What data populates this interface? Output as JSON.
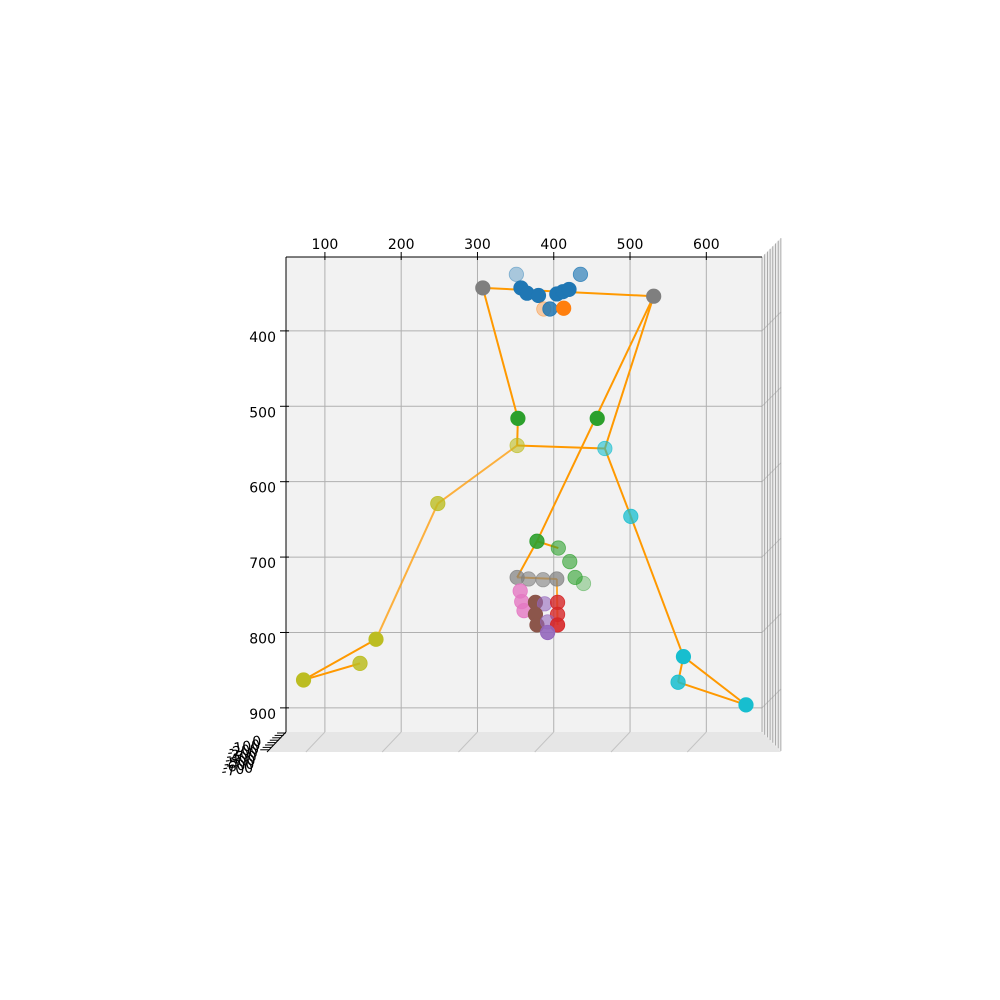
{
  "chart_data": {
    "type": "scatter",
    "projection": "3d",
    "view": "top-down",
    "title": "",
    "xlabel": "",
    "ylabel": "",
    "zlabel": "",
    "xlim": [
      49,
      673
    ],
    "ylim": [
      932,
      302
    ],
    "x_ticks": [
      100,
      200,
      300,
      400,
      500,
      600
    ],
    "y_ticks": [
      400,
      500,
      600,
      700,
      800,
      900
    ],
    "z_ticks": [
      "-700",
      "-600",
      "-500",
      "-400",
      "-300",
      "-200",
      "-100",
      "0"
    ],
    "grid": true,
    "line_color": "#ff9900",
    "points": [
      {
        "x": 351,
        "y": 325,
        "c": "#1f77b4",
        "a": 0.35
      },
      {
        "x": 435,
        "y": 325,
        "c": "#1f77b4",
        "a": 0.65
      },
      {
        "x": 307,
        "y": 343,
        "c": "#7f7f7f",
        "a": 1
      },
      {
        "x": 357,
        "y": 343,
        "c": "#1f77b4",
        "a": 1
      },
      {
        "x": 365,
        "y": 350,
        "c": "#1f77b4",
        "a": 1
      },
      {
        "x": 380,
        "y": 353,
        "c": "#1f77b4",
        "a": 1
      },
      {
        "x": 404,
        "y": 351,
        "c": "#1f77b4",
        "a": 1
      },
      {
        "x": 412,
        "y": 348,
        "c": "#1f77b4",
        "a": 1
      },
      {
        "x": 420,
        "y": 345,
        "c": "#1f77b4",
        "a": 1
      },
      {
        "x": 531,
        "y": 354,
        "c": "#7f7f7f",
        "a": 1
      },
      {
        "x": 387,
        "y": 371,
        "c": "#ff7f0e",
        "a": 0.35
      },
      {
        "x": 395,
        "y": 371,
        "c": "#1f77b4",
        "a": 0.85
      },
      {
        "x": 413,
        "y": 370,
        "c": "#ff7f0e",
        "a": 1
      },
      {
        "x": 353,
        "y": 516,
        "c": "#2ca02c",
        "a": 1
      },
      {
        "x": 457,
        "y": 516,
        "c": "#2ca02c",
        "a": 1
      },
      {
        "x": 352,
        "y": 552,
        "c": "#bcbd22",
        "a": 0.6
      },
      {
        "x": 467,
        "y": 556,
        "c": "#17becf",
        "a": 0.6
      },
      {
        "x": 248,
        "y": 629,
        "c": "#bcbd22",
        "a": 0.8
      },
      {
        "x": 501,
        "y": 646,
        "c": "#17becf",
        "a": 0.75
      },
      {
        "x": 378,
        "y": 679,
        "c": "#2ca02c",
        "a": 0.9
      },
      {
        "x": 406,
        "y": 688,
        "c": "#2ca02c",
        "a": 0.6
      },
      {
        "x": 421,
        "y": 706,
        "c": "#2ca02c",
        "a": 0.6
      },
      {
        "x": 428,
        "y": 727,
        "c": "#2ca02c",
        "a": 0.6
      },
      {
        "x": 439,
        "y": 735,
        "c": "#2ca02c",
        "a": 0.35
      },
      {
        "x": 352,
        "y": 727,
        "c": "#7f7f7f",
        "a": 0.7
      },
      {
        "x": 367,
        "y": 729,
        "c": "#7f7f7f",
        "a": 0.6
      },
      {
        "x": 386,
        "y": 730,
        "c": "#7f7f7f",
        "a": 0.6
      },
      {
        "x": 404,
        "y": 729,
        "c": "#7f7f7f",
        "a": 0.7
      },
      {
        "x": 356,
        "y": 745,
        "c": "#e377c2",
        "a": 0.8
      },
      {
        "x": 358,
        "y": 759,
        "c": "#e377c2",
        "a": 0.8
      },
      {
        "x": 361,
        "y": 771,
        "c": "#e377c2",
        "a": 0.8
      },
      {
        "x": 376,
        "y": 760,
        "c": "#8c564b",
        "a": 1
      },
      {
        "x": 388,
        "y": 762,
        "c": "#9467bd",
        "a": 0.6
      },
      {
        "x": 405,
        "y": 760,
        "c": "#d62728",
        "a": 0.8
      },
      {
        "x": 376,
        "y": 776,
        "c": "#8c564b",
        "a": 1
      },
      {
        "x": 405,
        "y": 776,
        "c": "#d62728",
        "a": 0.8
      },
      {
        "x": 378,
        "y": 790,
        "c": "#8c564b",
        "a": 1
      },
      {
        "x": 392,
        "y": 786,
        "c": "#9467bd",
        "a": 0.6
      },
      {
        "x": 405,
        "y": 790,
        "c": "#d62728",
        "a": 0.9
      },
      {
        "x": 392,
        "y": 800,
        "c": "#9467bd",
        "a": 0.9
      },
      {
        "x": 167,
        "y": 809,
        "c": "#bcbd22",
        "a": 1
      },
      {
        "x": 146,
        "y": 841,
        "c": "#bcbd22",
        "a": 0.85
      },
      {
        "x": 570,
        "y": 832,
        "c": "#17becf",
        "a": 1
      },
      {
        "x": 563,
        "y": 866,
        "c": "#17becf",
        "a": 0.85
      },
      {
        "x": 72,
        "y": 863,
        "c": "#bcbd22",
        "a": 1
      },
      {
        "x": 652,
        "y": 896,
        "c": "#17becf",
        "a": 1
      }
    ],
    "lines": [
      {
        "from": [
          307,
          343
        ],
        "to": [
          531,
          354
        ],
        "a": 1
      },
      {
        "from": [
          307,
          343
        ],
        "to": [
          353,
          516
        ],
        "a": 1
      },
      {
        "from": [
          353,
          516
        ],
        "to": [
          352,
          552
        ],
        "a": 1
      },
      {
        "from": [
          352,
          552
        ],
        "to": [
          467,
          556
        ],
        "a": 1
      },
      {
        "from": [
          531,
          354
        ],
        "to": [
          467,
          556
        ],
        "a": 1
      },
      {
        "from": [
          531,
          354
        ],
        "to": [
          378,
          679
        ],
        "a": 1
      },
      {
        "from": [
          467,
          556
        ],
        "to": [
          501,
          646
        ],
        "a": 1
      },
      {
        "from": [
          501,
          646
        ],
        "to": [
          570,
          832
        ],
        "a": 1
      },
      {
        "from": [
          570,
          832
        ],
        "to": [
          563,
          866
        ],
        "a": 1
      },
      {
        "from": [
          570,
          832
        ],
        "to": [
          652,
          896
        ],
        "a": 1
      },
      {
        "from": [
          563,
          866
        ],
        "to": [
          652,
          896
        ],
        "a": 1
      },
      {
        "from": [
          352,
          552
        ],
        "to": [
          248,
          629
        ],
        "a": 0.75
      },
      {
        "from": [
          248,
          629
        ],
        "to": [
          167,
          809
        ],
        "a": 0.75
      },
      {
        "from": [
          167,
          809
        ],
        "to": [
          72,
          863
        ],
        "a": 1
      },
      {
        "from": [
          146,
          841
        ],
        "to": [
          72,
          863
        ],
        "a": 1
      },
      {
        "from": [
          378,
          679
        ],
        "to": [
          406,
          688
        ],
        "a": 1
      },
      {
        "from": [
          378,
          679
        ],
        "to": [
          352,
          727
        ],
        "a": 1
      },
      {
        "from": [
          352,
          727
        ],
        "to": [
          404,
          729
        ],
        "a": 0.8
      },
      {
        "from": [
          404,
          729
        ],
        "to": [
          405,
          790
        ],
        "a": 0.8
      },
      {
        "from": [
          376,
          760
        ],
        "to": [
          378,
          790
        ],
        "a": 0.8
      }
    ]
  }
}
